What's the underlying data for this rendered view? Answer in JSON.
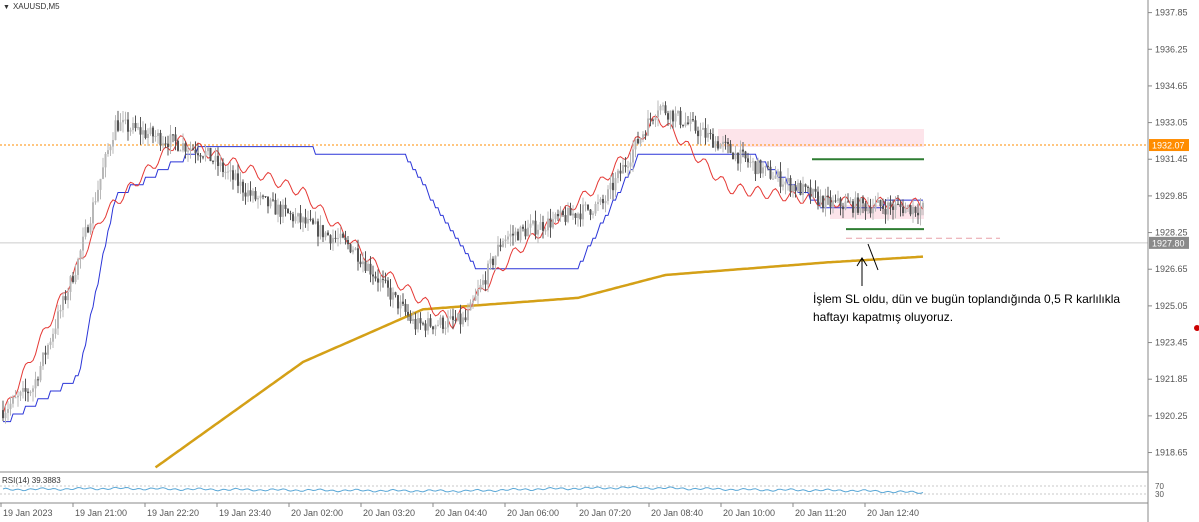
{
  "symbol": "XAUUSD,M5",
  "rsi_label": "RSI(14) 39.3883",
  "annotation": {
    "line1": "İşlem SL oldu, dün ve bugün toplandığında 0,5 R karlılıkla",
    "line2": "haftayı kapatmış oluyoruz."
  },
  "price_badges": {
    "dotted": "1932.07",
    "current": "1927.80"
  },
  "colors": {
    "bull": "#b8b8b8",
    "bear": "#555555",
    "fast_ma": "#e53935",
    "slow_ma": "#2b35d8",
    "long_ma": "#d4a017",
    "level_line": "#2e7d32",
    "dotted_level": "#ff8c00",
    "rsi_line": "#5aa7d6"
  },
  "chart_data": {
    "type": "candlestick",
    "y_ticks": [
      "1937.85",
      "1936.25",
      "1934.65",
      "1933.05",
      "1931.45",
      "1929.85",
      "1928.25",
      "1926.65",
      "1925.05",
      "1923.45",
      "1921.85",
      "1920.25",
      "1918.65"
    ],
    "x_ticks": [
      "19 Jan 2023",
      "19 Jan 21:00",
      "19 Jan 22:20",
      "19 Jan 23:40",
      "20 Jan 02:00",
      "20 Jan 03:20",
      "20 Jan 04:40",
      "20 Jan 06:00",
      "20 Jan 07:20",
      "20 Jan 08:40",
      "20 Jan 10:00",
      "20 Jan 11:20",
      "20 Jan 12:40"
    ],
    "rsi_ticks": [
      "70",
      "30"
    ],
    "ylim": [
      1917.8,
      1938.4
    ],
    "key_points": {
      "price": [
        [
          0,
          1920.5
        ],
        [
          12,
          1921.5
        ],
        [
          30,
          1927.0
        ],
        [
          45,
          1933.0
        ],
        [
          80,
          1931.8
        ],
        [
          100,
          1929.8
        ],
        [
          140,
          1927.6
        ],
        [
          165,
          1924.2
        ],
        [
          185,
          1924.4
        ],
        [
          200,
          1928.0
        ],
        [
          240,
          1929.5
        ],
        [
          262,
          1933.8
        ],
        [
          300,
          1931.2
        ],
        [
          330,
          1929.5
        ],
        [
          368,
          1929.3
        ]
      ],
      "fast_ma": [
        [
          0,
          1920.3
        ],
        [
          40,
          1929.0
        ],
        [
          70,
          1932.3
        ],
        [
          120,
          1930.0
        ],
        [
          150,
          1926.7
        ],
        [
          180,
          1924.3
        ],
        [
          205,
          1927.4
        ],
        [
          240,
          1930.5
        ],
        [
          262,
          1933.3
        ],
        [
          290,
          1930.2
        ],
        [
          330,
          1929.6
        ],
        [
          368,
          1929.5
        ]
      ],
      "slow_ma": [
        [
          0,
          1919.9
        ],
        [
          30,
          1921.9
        ],
        [
          45,
          1929.8
        ],
        [
          80,
          1932.0
        ],
        [
          160,
          1931.7
        ],
        [
          190,
          1926.6
        ],
        [
          230,
          1926.7
        ],
        [
          255,
          1931.7
        ],
        [
          300,
          1931.6
        ],
        [
          330,
          1929.2
        ],
        [
          368,
          1929.7
        ]
      ],
      "long_ma": [
        [
          61,
          1918.0
        ],
        [
          120,
          1922.6
        ],
        [
          168,
          1924.9
        ],
        [
          230,
          1925.4
        ],
        [
          265,
          1926.4
        ],
        [
          330,
          1926.95
        ],
        [
          368,
          1927.2
        ]
      ],
      "rsi": [
        [
          0,
          52
        ],
        [
          45,
          58
        ],
        [
          80,
          53
        ],
        [
          120,
          49
        ],
        [
          160,
          46
        ],
        [
          185,
          45
        ],
        [
          215,
          55
        ],
        [
          250,
          62
        ],
        [
          275,
          57
        ],
        [
          300,
          51
        ],
        [
          340,
          47
        ],
        [
          368,
          37
        ]
      ]
    }
  }
}
